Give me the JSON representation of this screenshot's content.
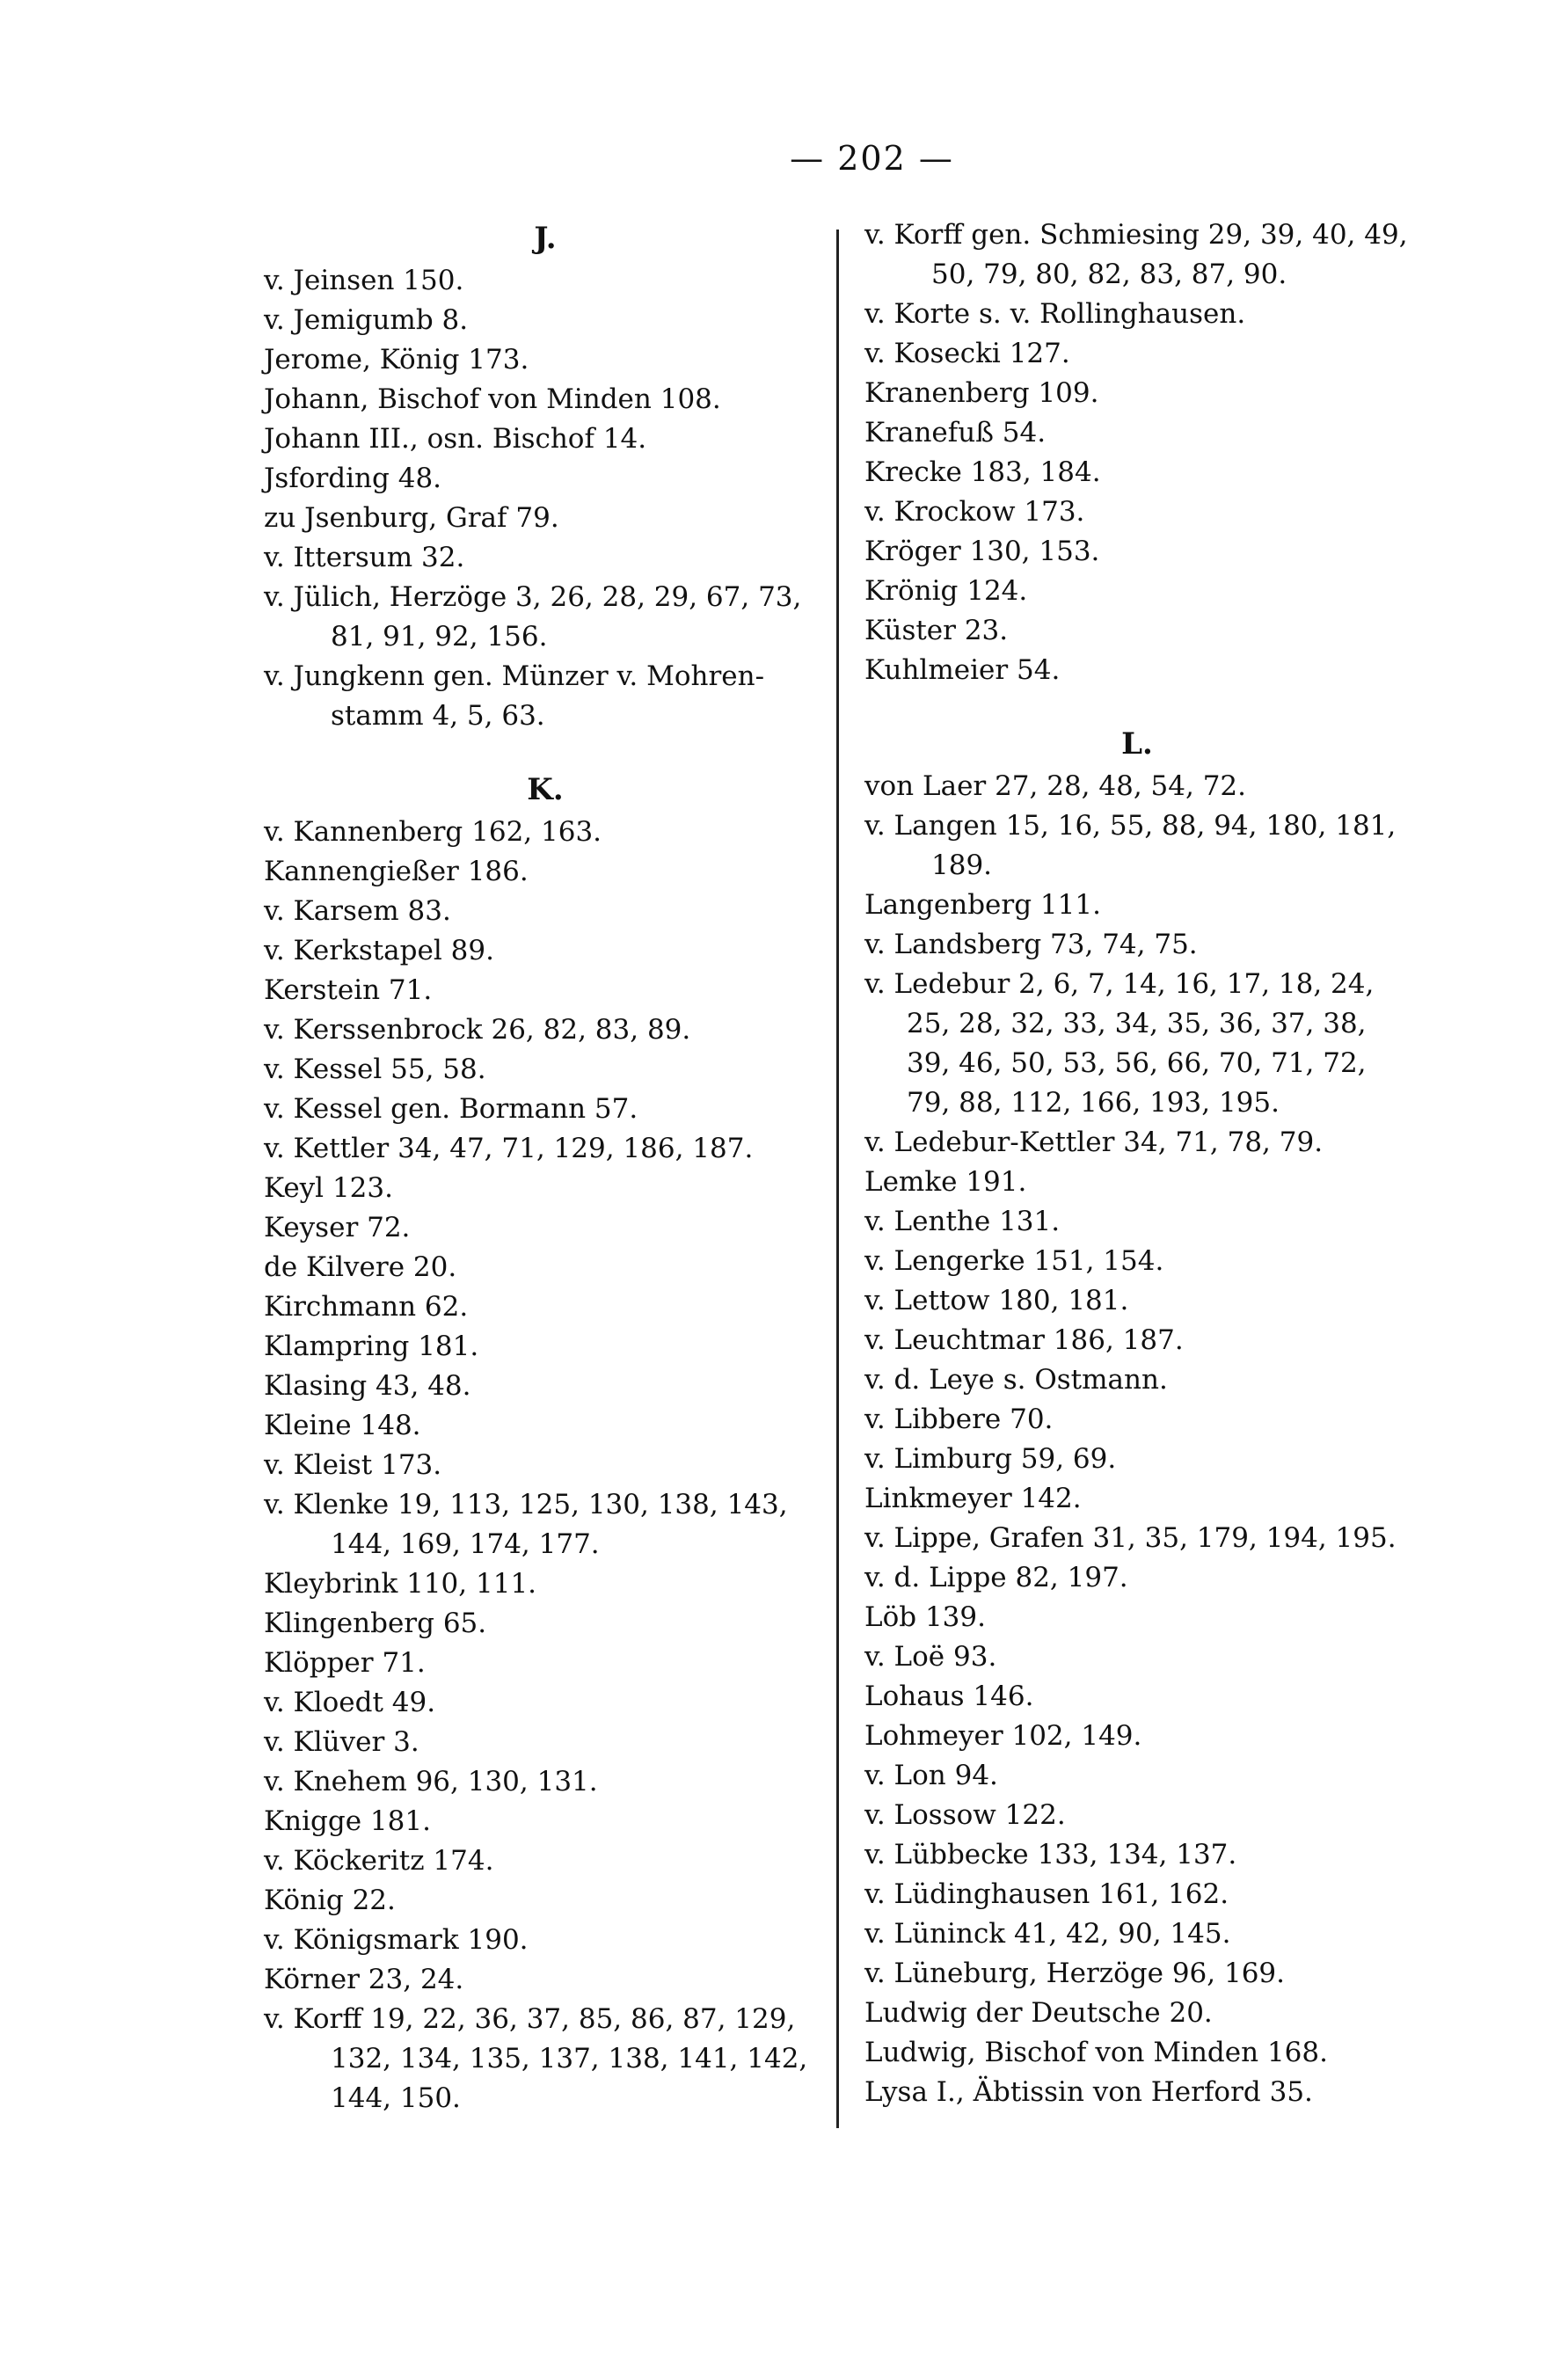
{
  "page_number": "— 202 —",
  "columns": [
    {
      "entries": [
        {
          "heading": "J."
        },
        {
          "lines": [
            "v. Jeinsen 150."
          ]
        },
        {
          "lines": [
            "v. Jemigumb 8."
          ]
        },
        {
          "lines": [
            "Jerome, König 173."
          ]
        },
        {
          "lines": [
            "Johann, Bischof von Minden 108."
          ]
        },
        {
          "lines": [
            "Johann III., osn. Bischof 14."
          ]
        },
        {
          "lines": [
            "Jsfording 48."
          ]
        },
        {
          "lines": [
            "zu Jsenburg, Graf 79."
          ]
        },
        {
          "lines": [
            "v. Ittersum 32."
          ]
        },
        {
          "lines": [
            "v. Jülich, Herzöge 3, 26, 28, 29, 67, 73,",
            "81, 91, 92, 156."
          ]
        },
        {
          "lines": [
            "v. Jungkenn gen. Münzer v. Mohren-",
            "stamm 4, 5, 63."
          ]
        },
        {
          "heading": "K."
        },
        {
          "lines": [
            "v. Kannenberg 162, 163."
          ]
        },
        {
          "lines": [
            "Kannengießer 186."
          ]
        },
        {
          "lines": [
            "v. Karsem 83."
          ]
        },
        {
          "lines": [
            "v. Kerkstapel 89."
          ]
        },
        {
          "lines": [
            "Kerstein 71."
          ]
        },
        {
          "lines": [
            "v. Kerssenbrock 26, 82, 83, 89."
          ]
        },
        {
          "lines": [
            "v. Kessel 55, 58."
          ]
        },
        {
          "lines": [
            "v. Kessel gen. Bormann 57."
          ]
        },
        {
          "lines": [
            "v. Kettler 34, 47, 71, 129, 186, 187."
          ]
        },
        {
          "lines": [
            "Keyl 123."
          ]
        },
        {
          "lines": [
            "Keyser 72."
          ]
        },
        {
          "lines": [
            "de Kilvere 20."
          ]
        },
        {
          "lines": [
            "Kirchmann 62."
          ]
        },
        {
          "lines": [
            "Klampring 181."
          ]
        },
        {
          "lines": [
            "Klasing 43, 48."
          ]
        },
        {
          "lines": [
            "Kleine 148."
          ]
        },
        {
          "lines": [
            "v. Kleist 173."
          ]
        },
        {
          "lines": [
            "v. Klenke 19, 113, 125, 130, 138, 143,",
            "144, 169, 174, 177."
          ]
        },
        {
          "lines": [
            "Kleybrink 110, 111."
          ]
        },
        {
          "lines": [
            "Klingenberg 65."
          ]
        },
        {
          "lines": [
            "Klöpper 71."
          ]
        },
        {
          "lines": [
            "v. Kloedt 49."
          ]
        },
        {
          "lines": [
            "v. Klüver 3."
          ]
        },
        {
          "lines": [
            "v. Knehem 96, 130, 131."
          ]
        },
        {
          "lines": [
            "Knigge 181."
          ]
        },
        {
          "lines": [
            "v. Köckeritz 174."
          ]
        },
        {
          "lines": [
            "König 22."
          ]
        },
        {
          "lines": [
            "v. Königsmark 190."
          ]
        },
        {
          "lines": [
            "Körner 23, 24."
          ]
        },
        {
          "lines": [
            "v. Korff 19, 22, 36, 37, 85, 86, 87, 129,",
            "132, 134, 135, 137, 138, 141, 142,",
            "144, 150."
          ]
        }
      ]
    },
    {
      "entries": [
        {
          "lines": [
            "v. Korff gen. Schmiesing 29, 39, 40, 49,",
            "50, 79, 80, 82, 83, 87, 90."
          ]
        },
        {
          "lines": [
            "v. Korte s. v. Rollinghausen."
          ]
        },
        {
          "lines": [
            "v. Kosecki 127."
          ]
        },
        {
          "lines": [
            "Kranenberg 109."
          ]
        },
        {
          "lines": [
            "Kranefuß 54."
          ]
        },
        {
          "lines": [
            "Krecke 183, 184."
          ]
        },
        {
          "lines": [
            "v. Krockow 173."
          ]
        },
        {
          "lines": [
            "Kröger 130, 153."
          ]
        },
        {
          "lines": [
            "Krönig 124."
          ]
        },
        {
          "lines": [
            "Küster 23."
          ]
        },
        {
          "lines": [
            "Kuhlmeier 54."
          ]
        },
        {
          "heading": "L."
        },
        {
          "lines": [
            "von Laer 27, 28, 48, 54, 72."
          ]
        },
        {
          "lines": [
            "v. Langen 15, 16, 55, 88, 94, 180, 181,",
            "189."
          ]
        },
        {
          "lines": [
            "Langenberg 111."
          ]
        },
        {
          "lines": [
            "v. Landsberg 73, 74, 75."
          ]
        },
        {
          "lines": [
            "v. Ledebur 2, 6, 7, 14, 16, 17, 18, 24,",
            "25, 28, 32, 33, 34, 35, 36, 37, 38,",
            "39, 46, 50, 53, 56, 66, 70, 71, 72,",
            "79, 88, 112, 166, 193, 195."
          ],
          "wide": true
        },
        {
          "lines": [
            "v. Ledebur-Kettler 34, 71, 78, 79."
          ]
        },
        {
          "lines": [
            "Lemke 191."
          ]
        },
        {
          "lines": [
            "v. Lenthe 131."
          ]
        },
        {
          "lines": [
            "v. Lengerke 151, 154."
          ]
        },
        {
          "lines": [
            "v. Lettow 180, 181."
          ]
        },
        {
          "lines": [
            "v. Leuchtmar 186, 187."
          ]
        },
        {
          "lines": [
            "v. d. Leye s. Ostmann."
          ]
        },
        {
          "lines": [
            "v. Libbere 70."
          ]
        },
        {
          "lines": [
            "v. Limburg 59, 69."
          ]
        },
        {
          "lines": [
            "Linkmeyer 142."
          ]
        },
        {
          "lines": [
            "v. Lippe, Grafen 31, 35, 179, 194, 195."
          ]
        },
        {
          "lines": [
            "v. d. Lippe 82, 197."
          ]
        },
        {
          "lines": [
            "Löb 139."
          ]
        },
        {
          "lines": [
            "v. Loë 93."
          ]
        },
        {
          "lines": [
            "Lohaus 146."
          ]
        },
        {
          "lines": [
            "Lohmeyer 102, 149."
          ]
        },
        {
          "lines": [
            "v. Lon 94."
          ]
        },
        {
          "lines": [
            "v. Lossow 122."
          ]
        },
        {
          "lines": [
            "v. Lübbecke 133, 134, 137."
          ]
        },
        {
          "lines": [
            "v. Lüdinghausen 161, 162."
          ]
        },
        {
          "lines": [
            "v. Lüninck 41, 42, 90, 145."
          ]
        },
        {
          "lines": [
            "v. Lüneburg, Herzöge 96, 169."
          ]
        },
        {
          "lines": [
            "Ludwig der Deutsche 20."
          ]
        },
        {
          "lines": [
            "Ludwig, Bischof von Minden 168."
          ]
        },
        {
          "lines": [
            "Lysa I., Äbtissin von Herford 35."
          ]
        }
      ]
    }
  ]
}
